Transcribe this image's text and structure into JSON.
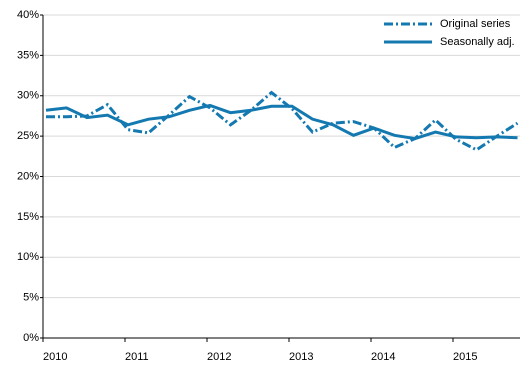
{
  "chart_data": {
    "type": "line",
    "categories": [
      "2010",
      null,
      null,
      null,
      "2011",
      null,
      null,
      null,
      "2012",
      null,
      null,
      null,
      "2013",
      null,
      null,
      null,
      "2014",
      null,
      null,
      null,
      "2015",
      null,
      null,
      null
    ],
    "series": [
      {
        "name": "Original series",
        "color": "#1479b0",
        "dash": "dashdot",
        "values": [
          27.4,
          27.4,
          27.5,
          28.9,
          25.8,
          25.4,
          27.6,
          29.9,
          28.5,
          26.4,
          28.2,
          30.4,
          28.4,
          25.5,
          26.6,
          26.8,
          26.0,
          23.6,
          24.7,
          27.0,
          24.6,
          23.3,
          25.0,
          26.6
        ]
      },
      {
        "name": "Seasonally adj.",
        "color": "#1479b0",
        "dash": "solid",
        "values": [
          28.2,
          28.5,
          27.3,
          27.6,
          26.4,
          27.1,
          27.4,
          28.2,
          28.8,
          27.9,
          28.2,
          28.7,
          28.7,
          27.1,
          26.4,
          25.1,
          26.0,
          25.1,
          24.7,
          25.5,
          24.9,
          24.8,
          24.9,
          24.8
        ]
      }
    ],
    "ylim": [
      0,
      40
    ],
    "yticks": [
      {
        "value": 0,
        "label": "0%"
      },
      {
        "value": 5,
        "label": "5%"
      },
      {
        "value": 10,
        "label": "10%"
      },
      {
        "value": 15,
        "label": "15%"
      },
      {
        "value": 20,
        "label": "20%"
      },
      {
        "value": 25,
        "label": "25%"
      },
      {
        "value": 30,
        "label": "30%"
      },
      {
        "value": 35,
        "label": "35%"
      },
      {
        "value": 40,
        "label": "40%"
      }
    ],
    "grid": true,
    "legend": "top-right"
  }
}
